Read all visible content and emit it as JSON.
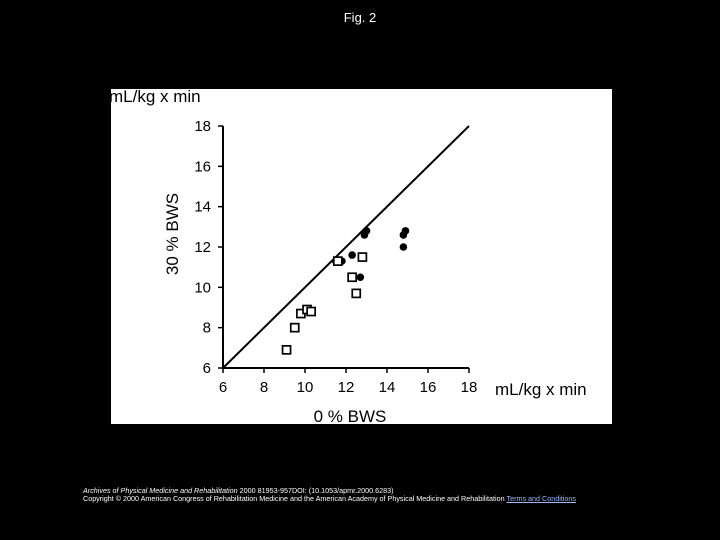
{
  "slide": {
    "title": "Fig. 2"
  },
  "footer": {
    "journal": "Archives of Physical Medicine and Rehabilitation",
    "citation": " 2000 81953-957DOI: (10.1053/apmr.2000.6283)",
    "copyright": "Copyright © 2000 American Congress of Rehabilitation Medicine and the American Academy of Physical Medicine and Rehabilitation",
    "link_text": "Terms and Conditions"
  },
  "chart_data": {
    "type": "scatter",
    "y_unit_label": "mL/kg x min",
    "x_unit_label": "mL/kg x min",
    "ylabel": "30 % BWS",
    "xlabel": "0 % BWS",
    "xlim": [
      6,
      18
    ],
    "ylim": [
      6,
      18
    ],
    "xticks": [
      "6",
      "8",
      "10",
      "12",
      "14",
      "16",
      "18"
    ],
    "yticks": [
      "6",
      "8",
      "10",
      "12",
      "14",
      "16",
      "18"
    ],
    "identity_line": true,
    "grid": false,
    "series": [
      {
        "marker": "filled-circle",
        "points": [
          {
            "x": 11.5,
            "y": 11.3
          },
          {
            "x": 11.8,
            "y": 11.3
          },
          {
            "x": 12.3,
            "y": 11.6
          },
          {
            "x": 12.7,
            "y": 10.5
          },
          {
            "x": 12.9,
            "y": 12.6
          },
          {
            "x": 13.0,
            "y": 12.8
          },
          {
            "x": 14.8,
            "y": 12.0
          },
          {
            "x": 14.8,
            "y": 12.6
          },
          {
            "x": 14.9,
            "y": 12.8
          }
        ]
      },
      {
        "marker": "open-square",
        "points": [
          {
            "x": 9.1,
            "y": 6.9
          },
          {
            "x": 9.5,
            "y": 8.0
          },
          {
            "x": 9.8,
            "y": 8.7
          },
          {
            "x": 10.1,
            "y": 8.9
          },
          {
            "x": 10.3,
            "y": 8.8
          },
          {
            "x": 11.6,
            "y": 11.3
          },
          {
            "x": 12.3,
            "y": 10.5
          },
          {
            "x": 12.5,
            "y": 9.7
          },
          {
            "x": 12.8,
            "y": 11.5
          }
        ]
      }
    ]
  }
}
